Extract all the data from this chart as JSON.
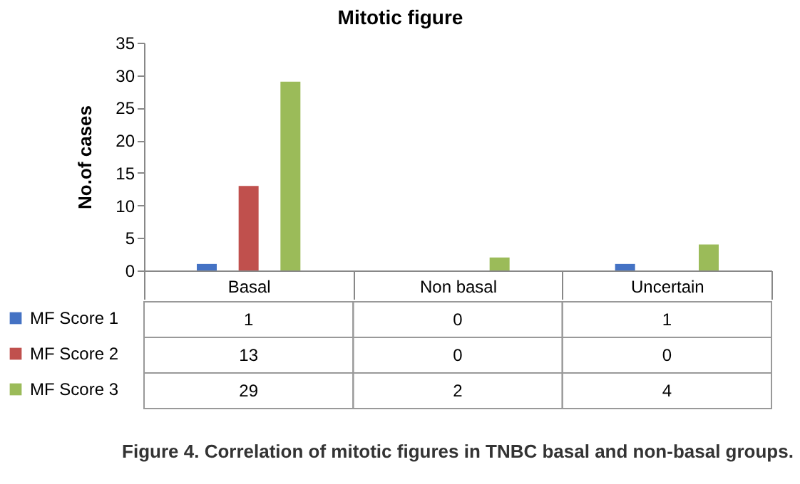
{
  "chart_data": {
    "type": "bar",
    "title": "Mitotic figure",
    "ylabel": "No.of cases",
    "categories": [
      "Basal",
      "Non basal",
      "Uncertain"
    ],
    "series": [
      {
        "name": "MF Score 1",
        "color": "#4472c4",
        "values": [
          1,
          0,
          1
        ]
      },
      {
        "name": "MF Score 2",
        "color": "#c0504d",
        "values": [
          13,
          0,
          0
        ]
      },
      {
        "name": "MF Score 3",
        "color": "#9bbb59",
        "values": [
          29,
          2,
          4
        ]
      }
    ],
    "ylim": [
      0,
      35
    ],
    "yticks": [
      0,
      5,
      10,
      15,
      20,
      25,
      30,
      35
    ],
    "data_labels": true,
    "legend": "bottom left",
    "annotations": [
      "Figure 4. Correlation of mitotic figures in TNBC basal and non-basal groups."
    ]
  }
}
